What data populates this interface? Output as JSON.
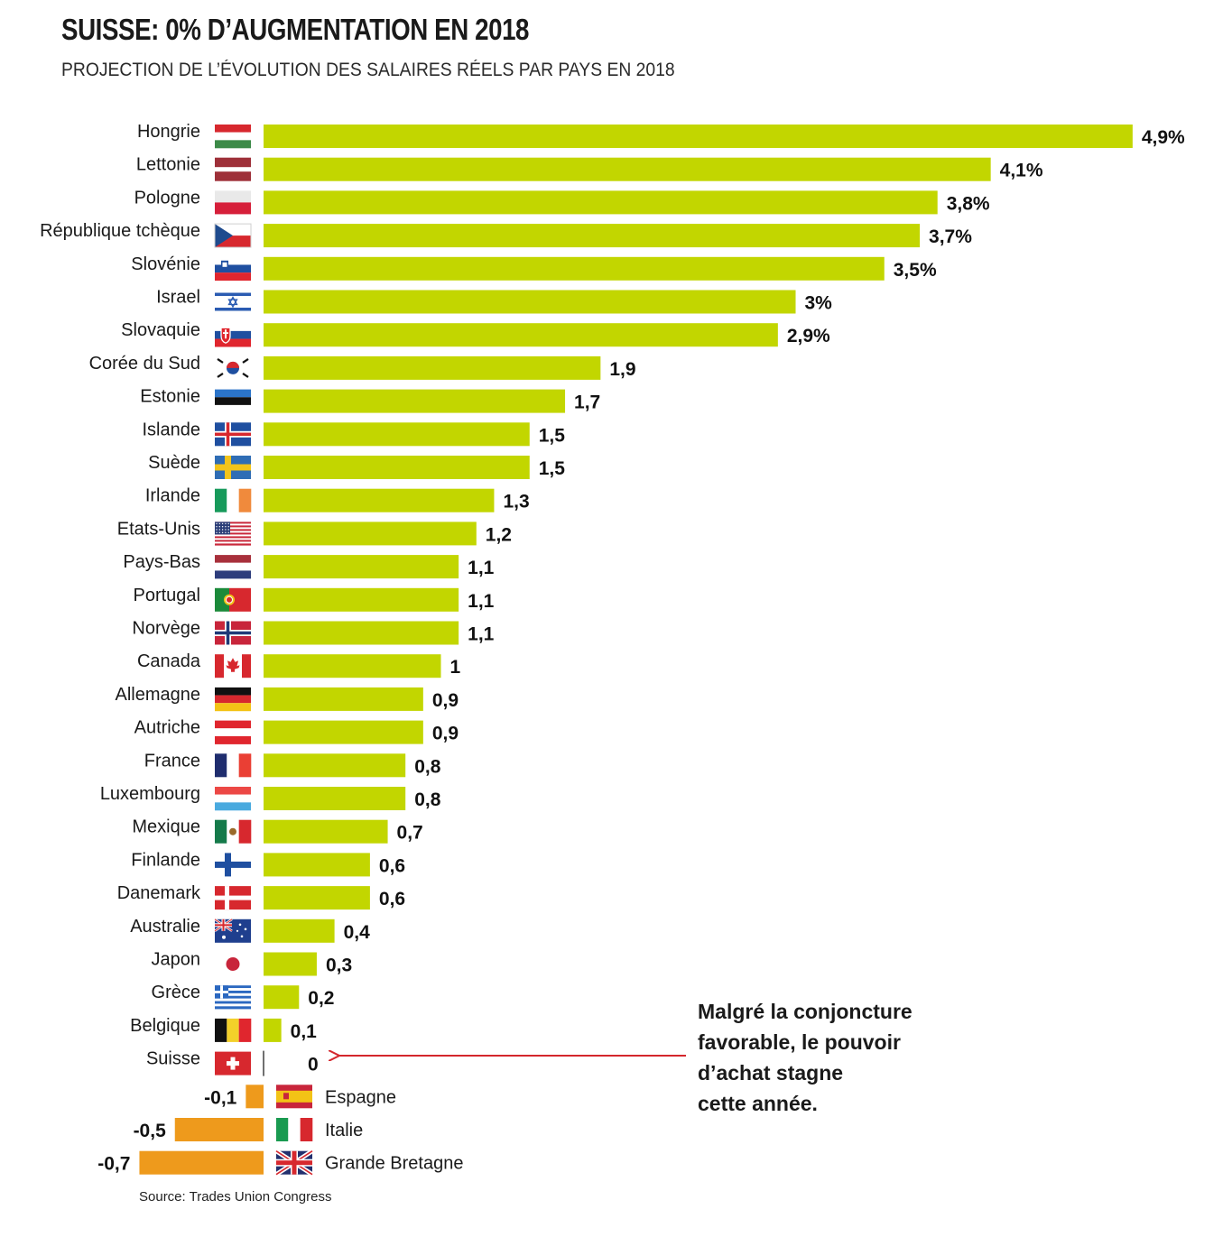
{
  "header": {
    "title": "SUISSE: 0% D’AUGMENTATION EN 2018",
    "subtitle": "PROJECTION DE L’ÉVOLUTION DES SALAIRES RÉELS PAR PAYS EN 2018"
  },
  "annotation": {
    "lines": [
      "Malgré la conjoncture",
      "favorable, le pouvoir",
      "d’achat stagne",
      "cette année."
    ]
  },
  "source": "Source: Trades Union Congress",
  "colors": {
    "positive": "#c2d600",
    "negative": "#ee9a1c",
    "arrow": "#d4262c"
  },
  "chart_data": {
    "type": "bar",
    "orientation": "horizontal",
    "title": "SUISSE: 0% D’AUGMENTATION EN 2018",
    "subtitle": "PROJECTION DE L’ÉVOLUTION DES SALAIRES RÉELS PAR PAYS EN 2018",
    "unit": "%",
    "grid": false,
    "categories": [
      "Hongrie",
      "Lettonie",
      "Pologne",
      "République tchèque",
      "Slovénie",
      "Israel",
      "Slovaquie",
      "Corée du Sud",
      "Estonie",
      "Islande",
      "Suède",
      "Irlande",
      "Etats-Unis",
      "Pays-Bas",
      "Portugal",
      "Norvège",
      "Canada",
      "Allemagne",
      "Autriche",
      "France",
      "Luxembourg",
      "Mexique",
      "Finlande",
      "Danemark",
      "Australie",
      "Japon",
      "Grèce",
      "Belgique",
      "Suisse",
      "Espagne",
      "Italie",
      "Grande Bretagne"
    ],
    "values": [
      4.9,
      4.1,
      3.8,
      3.7,
      3.5,
      3.0,
      2.9,
      1.9,
      1.7,
      1.5,
      1.5,
      1.3,
      1.2,
      1.1,
      1.1,
      1.1,
      1.0,
      0.9,
      0.9,
      0.8,
      0.8,
      0.7,
      0.6,
      0.6,
      0.4,
      0.3,
      0.2,
      0.1,
      0,
      -0.1,
      -0.5,
      -0.7
    ],
    "value_labels": [
      "4,9%",
      "4,1%",
      "3,8%",
      "3,7%",
      "3,5%",
      "3%",
      "2,9%",
      "1,9",
      "1,7",
      "1,5",
      "1,5",
      "1,3",
      "1,2",
      "1,1",
      "1,1",
      "1,1",
      "1",
      "0,9",
      "0,9",
      "0,8",
      "0,8",
      "0,7",
      "0,6",
      "0,6",
      "0,4",
      "0,3",
      "0,2",
      "0,1",
      "0",
      "-0,1",
      "-0,5",
      "-0,7"
    ],
    "flags": [
      "hungary-flag",
      "latvia-flag",
      "poland-flag",
      "czech-flag",
      "slovenia-flag",
      "israel-flag",
      "slovakia-flag",
      "south-korea-flag",
      "estonia-flag",
      "iceland-flag",
      "sweden-flag",
      "ireland-flag",
      "usa-flag",
      "netherlands-flag",
      "portugal-flag",
      "norway-flag",
      "canada-flag",
      "germany-flag",
      "austria-flag",
      "france-flag",
      "luxembourg-flag",
      "mexico-flag",
      "finland-flag",
      "denmark-flag",
      "australia-flag",
      "japan-flag",
      "greece-flag",
      "belgium-flag",
      "switzerland-flag",
      "spain-flag",
      "italy-flag",
      "uk-flag"
    ]
  }
}
